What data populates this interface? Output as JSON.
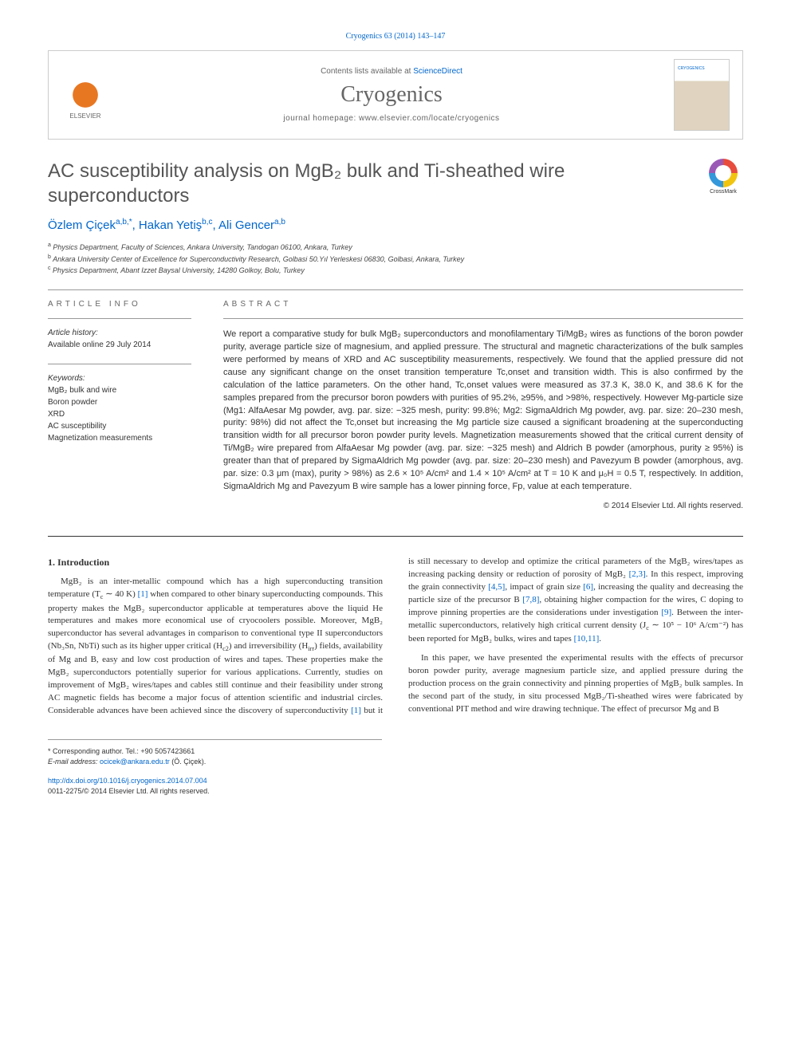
{
  "citation": "Cryogenics 63 (2014) 143–147",
  "header": {
    "contents_prefix": "Contents lists available at ",
    "contents_link": "ScienceDirect",
    "journal": "Cryogenics",
    "homepage_prefix": "journal homepage: ",
    "homepage_url": "www.elsevier.com/locate/cryogenics",
    "publisher_label": "ELSEVIER"
  },
  "title": "AC susceptibility analysis on MgB₂ bulk and Ti-sheathed wire superconductors",
  "crossmark_label": "CrossMark",
  "authors_html": "Özlem Çiçek<sup>a,b,*</sup>, Hakan Yetiş<sup>b,c</sup>, Ali Gencer<sup>a,b</sup>",
  "affiliations": [
    {
      "sup": "a",
      "text": "Physics Department, Faculty of Sciences, Ankara University, Tandogan 06100, Ankara, Turkey"
    },
    {
      "sup": "b",
      "text": "Ankara University Center of Excellence for Superconductivity Research, Golbasi 50.Yıl Yerleskesi 06830, Golbasi, Ankara, Turkey"
    },
    {
      "sup": "c",
      "text": "Physics Department, Abant Izzet Baysal University, 14280 Golkoy, Bolu, Turkey"
    }
  ],
  "info": {
    "heading": "ARTICLE INFO",
    "history_label": "Article history:",
    "history_line": "Available online 29 July 2014",
    "keywords_label": "Keywords:",
    "keywords": [
      "MgB₂ bulk and wire",
      "Boron powder",
      "XRD",
      "AC susceptibility",
      "Magnetization measurements"
    ]
  },
  "abstract": {
    "heading": "ABSTRACT",
    "text": "We report a comparative study for bulk MgB₂ superconductors and monofilamentary Ti/MgB₂ wires as functions of the boron powder purity, average particle size of magnesium, and applied pressure. The structural and magnetic characterizations of the bulk samples were performed by means of XRD and AC susceptibility measurements, respectively. We found that the applied pressure did not cause any significant change on the onset transition temperature Tc,onset and transition width. This is also confirmed by the calculation of the lattice parameters. On the other hand, Tc,onset values were measured as 37.3 K, 38.0 K, and 38.6 K for the samples prepared from the precursor boron powders with purities of 95.2%, ≥95%, and >98%, respectively. However Mg-particle size (Mg1: AlfaAesar Mg powder, avg. par. size: −325 mesh, purity: 99.8%; Mg2: SigmaAldrich Mg powder, avg. par. size: 20–230 mesh, purity: 98%) did not affect the Tc,onset but increasing the Mg particle size caused a significant broadening at the superconducting transition width for all precursor boron powder purity levels. Magnetization measurements showed that the critical current density of Ti/MgB₂ wire prepared from AlfaAesar Mg powder (avg. par. size: −325 mesh) and Aldrich B powder (amorphous, purity ≥ 95%) is greater than that of prepared by SigmaAldrich Mg powder (avg. par. size: 20–230 mesh) and Pavezyum B powder (amorphous, avg. par. size: 0.3 μm (max), purity > 98%) as 2.6 × 10⁵ A/cm² and 1.4 × 10⁵ A/cm² at T = 10 K and μ₀H = 0.5 T, respectively. In addition, SigmaAldrich Mg and Pavezyum B wire sample has a lower pinning force, Fp, value at each temperature.",
    "copyright": "© 2014 Elsevier Ltd. All rights reserved."
  },
  "section1": {
    "heading": "1. Introduction",
    "p1_html": "MgB₂ is an inter-metallic compound which has a high superconducting transition temperature (T<sub>c</sub> ∼ 40 K) <span class=\"ref-link\">[1]</span> when compared to other binary superconducting compounds. This property makes the MgB₂ superconductor applicable at temperatures above the liquid He temperatures and makes more economical use of cryocoolers possible. Moreover, MgB₂ superconductor has several advantages in comparison to conventional type II superconductors (Nb₃Sn, NbTi) such as its higher upper critical (H<sub>c2</sub>) and irreversibility (H<sub>irr</sub>) fields, availability of Mg and B, easy and low cost production of wires and tapes. These properties make the MgB₂ superconductors potentially superior for various applications. Currently, studies on improvement of MgB₂ wires/tapes and cables still continue and their feasibility under strong AC magnetic fields has become a major focus of attention scientific and industrial circles. Considerable advances have been achieved since the discovery of superconductivity <span class=\"ref-link\">[1]</span> but it is still necessary to develop and optimize the critical parameters of the MgB₂ wires/tapes as increasing packing density or reduction of porosity of MgB₂ <span class=\"ref-link\">[2,3]</span>. In this respect, improving the grain connectivity <span class=\"ref-link\">[4,5]</span>, impact of grain size <span class=\"ref-link\">[6]</span>, increasing the quality and decreasing the particle size of the precursor B <span class=\"ref-link\">[7,8]</span>, obtaining higher compaction for the wires, C doping to improve pinning properties are the considerations under investigation <span class=\"ref-link\">[9]</span>. Between the inter-metallic superconductors, relatively high critical current density (J<sub>c</sub> ∼ 10⁵ − 10⁶ A/cm⁻²) has been reported for MgB₂ bulks, wires and tapes <span class=\"ref-link\">[10,11]</span>.",
    "p2_html": "In this paper, we have presented the experimental results with the effects of precursor boron powder purity, average magnesium particle size, and applied pressure during the production process on the grain connectivity and pinning properties of MgB₂ bulk samples. In the second part of the study, in situ processed MgB₂/Ti-sheathed wires were fabricated by conventional PIT method and wire drawing technique. The effect of precursor Mg and B"
  },
  "footer": {
    "corresponding": "* Corresponding author. Tel.: +90 5057423661",
    "email_label": "E-mail address:",
    "email": "ocicek@ankara.edu.tr",
    "email_suffix": "(Ö. Çiçek).",
    "doi_url": "http://dx.doi.org/10.1016/j.cryogenics.2014.07.004",
    "issn_line": "0011-2275/© 2014 Elsevier Ltd. All rights reserved."
  }
}
